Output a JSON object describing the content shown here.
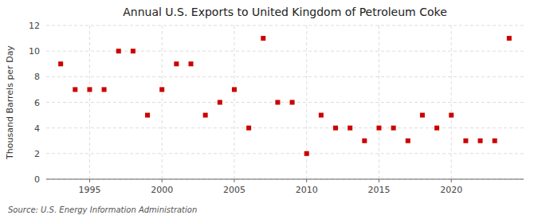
{
  "chart_data": {
    "type": "scatter",
    "title": "Annual U.S. Exports to United Kingdom of Petroleum Coke",
    "y_label": "Thousand Barrels per Day",
    "source": "Source: U.S. Energy Information Administration",
    "x": [
      1993,
      1994,
      1995,
      1996,
      1997,
      1998,
      1999,
      2000,
      2001,
      2002,
      2003,
      2004,
      2005,
      2006,
      2007,
      2008,
      2009,
      2010,
      2011,
      2012,
      2013,
      2014,
      2015,
      2016,
      2017,
      2018,
      2019,
      2020,
      2021,
      2022,
      2023,
      2024
    ],
    "values": [
      9,
      7,
      7,
      7,
      10,
      10,
      5,
      7,
      9,
      9,
      5,
      6,
      7,
      4,
      11,
      6,
      6,
      2,
      5,
      4,
      4,
      3,
      4,
      4,
      3,
      5,
      4,
      5,
      3,
      3,
      3,
      11
    ],
    "color": "#cc0000",
    "marker": "square",
    "xlim": [
      1992,
      2025
    ],
    "ylim": [
      0,
      12
    ],
    "xticks": [
      1995,
      2000,
      2005,
      2010,
      2015,
      2020
    ],
    "yticks": [
      0,
      2,
      4,
      6,
      8,
      10,
      12
    ],
    "grid": true
  }
}
